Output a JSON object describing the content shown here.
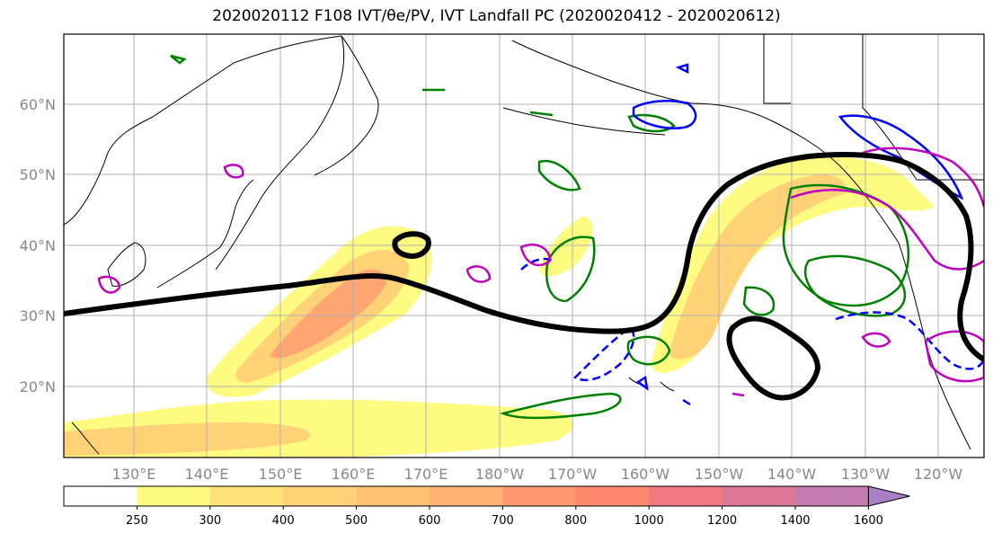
{
  "title": "2020020112 F108 IVT/θe/PV, IVT Landfall PC (2020020412 - 2020020612)",
  "map": {
    "lat_labels": [
      "60°N",
      "50°N",
      "40°N",
      "30°N",
      "20°N"
    ],
    "lon_labels": [
      "130°E",
      "140°E",
      "150°E",
      "160°E",
      "170°E",
      "180°W",
      "170°W",
      "160°W",
      "150°W",
      "140°W",
      "130°W",
      "120°W"
    ],
    "gridlines": true
  },
  "colorbar": {
    "ticks": [
      "250",
      "300",
      "400",
      "500",
      "600",
      "700",
      "800",
      "1000",
      "1200",
      "1400",
      "1600"
    ],
    "colors": [
      "#ffffff",
      "#fffb80",
      "#ffe27a",
      "#ffd277",
      "#ffc275",
      "#ffb273",
      "#ff9a70",
      "#ff876d",
      "#f07a80",
      "#dc7895",
      "#c27cb0",
      "#a87ec5"
    ],
    "extend": "max"
  }
}
